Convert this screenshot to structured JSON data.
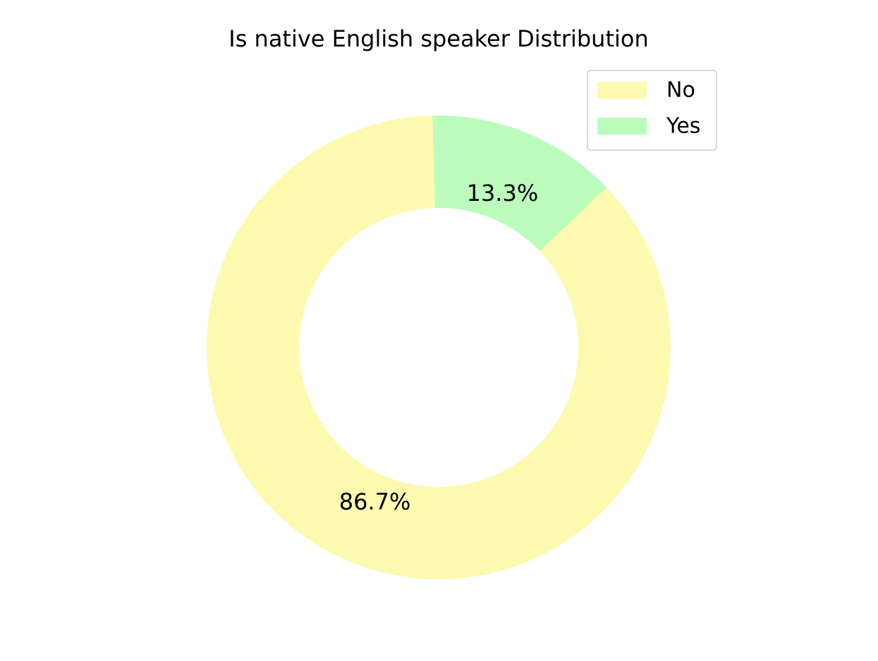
{
  "chart_data": {
    "type": "pie",
    "title": "Is native English speaker Distribution",
    "donut": true,
    "slices": [
      {
        "label": "No",
        "value": 86.7,
        "display": "86.7%",
        "color": "#fdf9ae"
      },
      {
        "label": "Yes",
        "value": 13.3,
        "display": "13.3%",
        "color": "#bbfcbd"
      }
    ],
    "legend": {
      "placement": "top-right",
      "entries": [
        "No",
        "Yes"
      ]
    }
  }
}
